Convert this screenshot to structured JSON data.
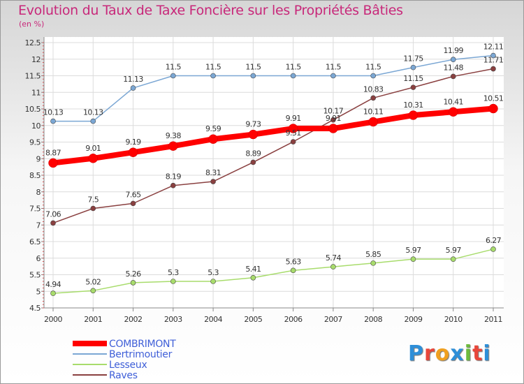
{
  "chart_data": {
    "type": "line",
    "title": "Evolution du Taux de Taxe Foncière sur les Propriétés Bâties",
    "ylabel": "(en %)",
    "xlabel": "",
    "ylim": [
      4.5,
      12.5
    ],
    "yticks": [
      "4.5",
      "5",
      "5.5",
      "6",
      "6.5",
      "7",
      "7.5",
      "8",
      "8.5",
      "9",
      "9.5",
      "10",
      "10.5",
      "11",
      "11.5",
      "12",
      "12.5"
    ],
    "categories": [
      "2000",
      "2001",
      "2002",
      "2003",
      "2004",
      "2005",
      "2006",
      "2007",
      "2008",
      "2009",
      "2010",
      "2011"
    ],
    "legend_position": "bottom-left",
    "logo": "Proxiti",
    "series": [
      {
        "name": "COMBRIMONT",
        "color": "#ff0000",
        "bold": true,
        "values": [
          8.87,
          9.01,
          9.19,
          9.38,
          9.59,
          9.73,
          9.91,
          9.91,
          10.11,
          10.31,
          10.41,
          10.51
        ],
        "labels": [
          "8.87",
          "9.01",
          "9.19",
          "9.38",
          "9.59",
          "9.73",
          "9.91",
          "9.91",
          "10.11",
          "10.31",
          "10.41",
          "10.51"
        ]
      },
      {
        "name": "Bertrimoutier",
        "color": "#7ba7d4",
        "values": [
          10.13,
          10.13,
          11.13,
          11.5,
          11.5,
          11.5,
          11.5,
          11.5,
          11.5,
          11.75,
          11.99,
          12.11
        ],
        "labels": [
          "10.13",
          "10.13",
          "11.13",
          "11.5",
          "11.5",
          "11.5",
          "11.5",
          "11.5",
          "11.5",
          "11.75",
          "11.99",
          "12.11"
        ]
      },
      {
        "name": "Lesseux",
        "color": "#a8dc6c",
        "values": [
          4.94,
          5.02,
          5.26,
          5.3,
          5.3,
          5.41,
          5.63,
          5.74,
          5.85,
          5.97,
          5.97,
          6.27
        ],
        "labels": [
          "4.94",
          "5.02",
          "5.26",
          "5.3",
          "5.3",
          "5.41",
          "5.63",
          "5.74",
          "5.85",
          "5.97",
          "5.97",
          "6.27"
        ]
      },
      {
        "name": "Raves",
        "color": "#8a4040",
        "values": [
          7.06,
          7.5,
          7.65,
          8.19,
          8.31,
          8.89,
          9.51,
          10.17,
          10.83,
          11.15,
          11.48,
          11.71
        ],
        "labels": [
          "7.06",
          "7.5",
          "7.65",
          "8.19",
          "8.31",
          "8.89",
          "9.51",
          "10.17",
          "10.83",
          "11.15",
          "11.48",
          "11.71"
        ]
      }
    ]
  }
}
